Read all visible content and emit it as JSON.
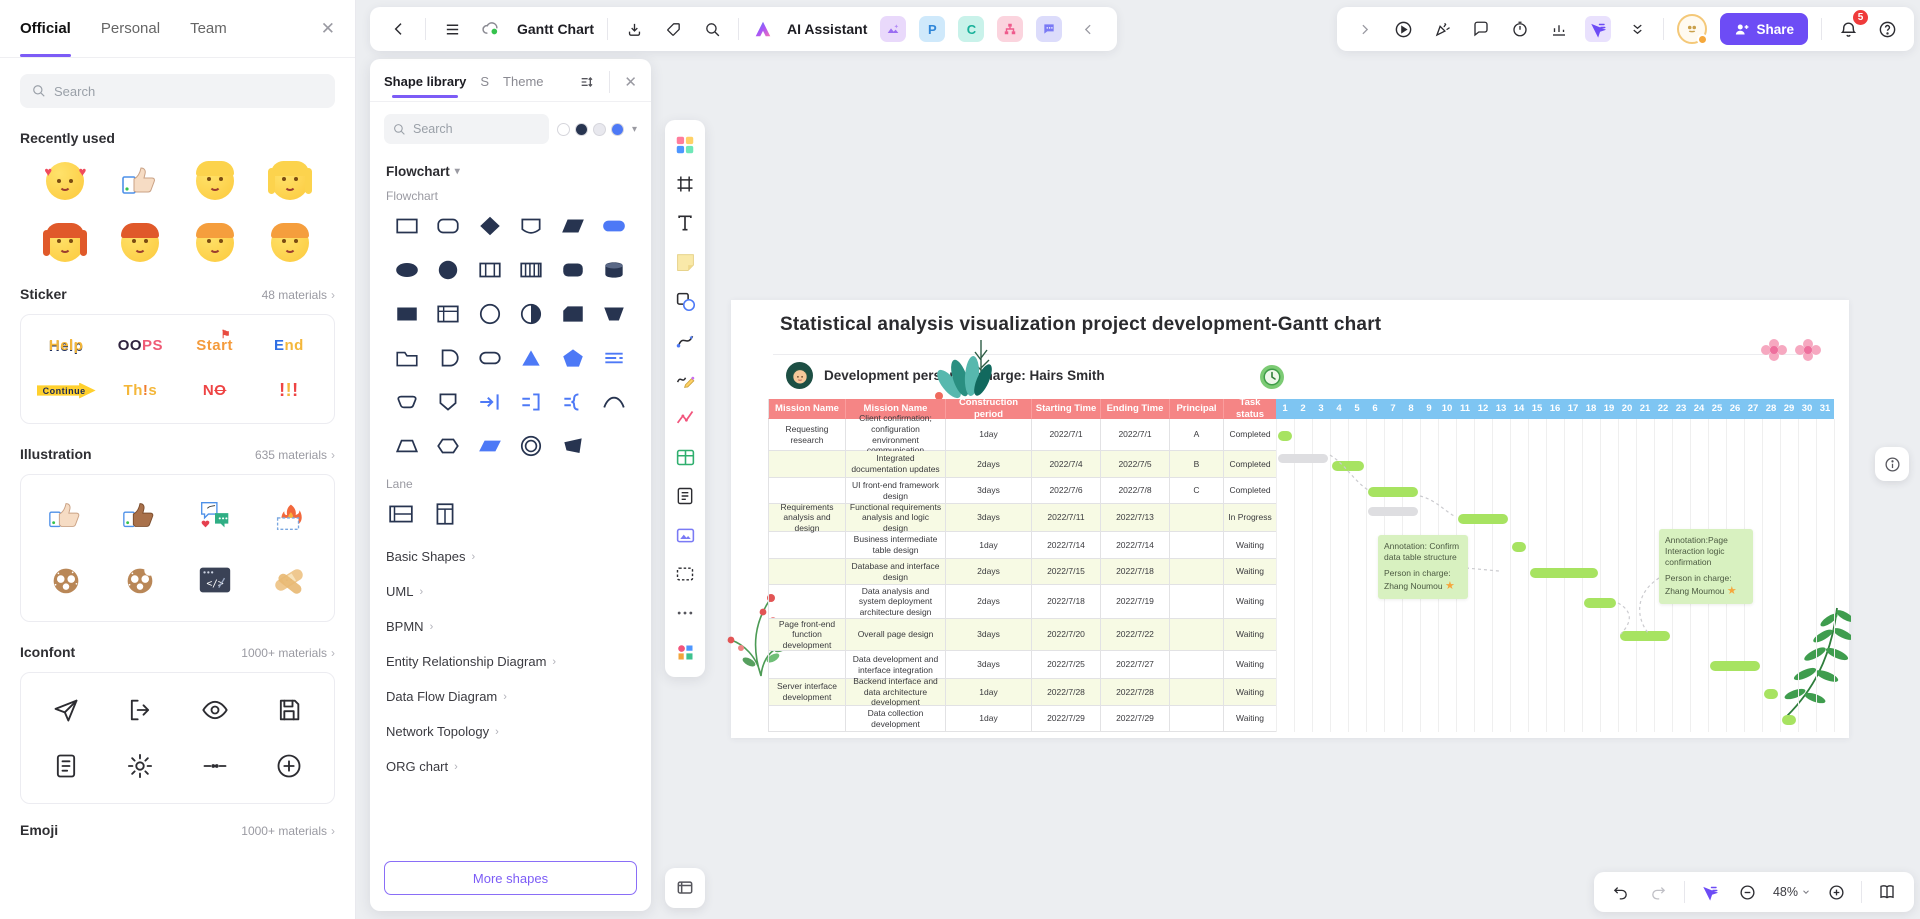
{
  "app": {
    "accent": "#6d4cf5"
  },
  "sidebar": {
    "tabs": [
      {
        "label": "Official",
        "active": true
      },
      {
        "label": "Personal",
        "active": false
      },
      {
        "label": "Team",
        "active": false
      }
    ],
    "search_placeholder": "Search",
    "recently_used": {
      "title": "Recently used",
      "items": [
        {
          "name": "smiling-face-with-hearts",
          "kind": "love"
        },
        {
          "name": "thumbs-up-sticker",
          "kind": "thumb"
        },
        {
          "name": "blond-boy",
          "kind": "face",
          "hair": "#fcd34d",
          "long": false
        },
        {
          "name": "blond-girl",
          "kind": "face",
          "hair": "#fcd34d",
          "long": true
        },
        {
          "name": "redhead-woman",
          "kind": "face",
          "hair": "#e0592a",
          "long": true
        },
        {
          "name": "redhead-person",
          "kind": "face",
          "hair": "#e0592a",
          "long": false
        },
        {
          "name": "curly-orange-person",
          "kind": "face",
          "hair": "#f59e3d",
          "long": false
        },
        {
          "name": "orange-boy",
          "kind": "face",
          "hair": "#f59e3d",
          "long": false
        }
      ]
    },
    "sticker": {
      "title": "Sticker",
      "count": "48 materials",
      "items": [
        {
          "text": "Help",
          "cls": "stk-help"
        },
        {
          "text": "OOPS",
          "cls": "stk-oops"
        },
        {
          "text": "Start",
          "cls": "stk-start"
        },
        {
          "text": "End",
          "cls": "stk-end"
        },
        {
          "text": "Continue",
          "cls": "stk-cont"
        },
        {
          "text": "This",
          "cls": "stk-this"
        },
        {
          "text": "NO",
          "cls": "stk-no"
        },
        {
          "text": "!!!",
          "cls": "stk-bang"
        }
      ]
    },
    "illustration": {
      "title": "Illustration",
      "count": "635 materials",
      "items": [
        "thumb-light",
        "thumb-dark",
        "chat-love",
        "burning-box",
        "pretzel",
        "pretzel-bitten",
        "code-window",
        "band-aid"
      ]
    },
    "iconfont": {
      "title": "Iconfont",
      "count": "1000+ materials",
      "items": [
        "send",
        "login",
        "eye",
        "save",
        "document",
        "settings",
        "divider",
        "add"
      ]
    },
    "emoji_section": {
      "title": "Emoji",
      "count": "1000+ materials"
    }
  },
  "shape_panel": {
    "tabs": [
      {
        "label": "Shape library",
        "active": true
      },
      {
        "label": "S",
        "active": false
      },
      {
        "label": "Theme",
        "active": false
      }
    ],
    "search_placeholder": "Search",
    "style_dots": [
      "#ffffff",
      "#273450",
      "#e8e8ee",
      "#4d79f6"
    ],
    "category_label": "Flowchart",
    "group_label": "Flowchart",
    "shapes": [
      {
        "n": "process-rectangle",
        "s": "o",
        "t": "rect"
      },
      {
        "n": "rounded-rectangle",
        "s": "o",
        "t": "roundrect"
      },
      {
        "n": "decision-diamond",
        "s": "f",
        "t": "diamond"
      },
      {
        "n": "display",
        "s": "o",
        "t": "display"
      },
      {
        "n": "parallelogram-filled",
        "s": "f",
        "t": "para"
      },
      {
        "n": "terminator-pill",
        "s": "b",
        "t": "pillf"
      },
      {
        "n": "ellipse-filled",
        "s": "f",
        "t": "ellipsef"
      },
      {
        "n": "circle-filled",
        "s": "f",
        "t": "circlef"
      },
      {
        "n": "predefined-process",
        "s": "o",
        "t": "split2"
      },
      {
        "n": "multi-process",
        "s": "o",
        "t": "split4"
      },
      {
        "n": "rounded-filled",
        "s": "f",
        "t": "roundrectf"
      },
      {
        "n": "drum-storage",
        "s": "f",
        "t": "cyl"
      },
      {
        "n": "rectangle-filled",
        "s": "f",
        "t": "rectf"
      },
      {
        "n": "internal-storage",
        "s": "o",
        "t": "winrect"
      },
      {
        "n": "connector-circle",
        "s": "o",
        "t": "circleo"
      },
      {
        "n": "or-junction",
        "s": "o",
        "t": "half"
      },
      {
        "n": "card-filled",
        "s": "f",
        "t": "card"
      },
      {
        "n": "manual-operation",
        "s": "f",
        "t": "trapdown"
      },
      {
        "n": "folder-tab",
        "s": "o",
        "t": "folder"
      },
      {
        "n": "delay-d",
        "s": "o",
        "t": "dshape"
      },
      {
        "n": "stadium",
        "s": "o",
        "t": "stadium"
      },
      {
        "n": "merge-triangle",
        "s": "b",
        "t": "trib"
      },
      {
        "n": "pentagon-blue",
        "s": "b",
        "t": "pentb"
      },
      {
        "n": "multi-line",
        "s": "b",
        "t": "linesb"
      },
      {
        "n": "rounded-trapezoid",
        "s": "o",
        "t": "roundtrap"
      },
      {
        "n": "shield",
        "s": "o",
        "t": "shield"
      },
      {
        "n": "arrow-to-bar",
        "s": "b",
        "t": "arrowb"
      },
      {
        "n": "bracket",
        "s": "b",
        "t": "bracketb"
      },
      {
        "n": "brace",
        "s": "b",
        "t": "braceb"
      },
      {
        "n": "arc-curve",
        "s": "o",
        "t": "arc"
      },
      {
        "n": "trapezoid",
        "s": "o",
        "t": "trap"
      },
      {
        "n": "hexagon",
        "s": "o",
        "t": "hex"
      },
      {
        "n": "parallelogram-blue",
        "s": "b",
        "t": "parab"
      },
      {
        "n": "double-circle",
        "s": "o",
        "t": "dcircle"
      },
      {
        "n": "skewed-quad",
        "s": "f",
        "t": "quadf"
      }
    ],
    "lane_label": "Lane",
    "lanes": [
      "horizontal-pool",
      "vertical-pool"
    ],
    "sections": [
      "Basic Shapes",
      "UML",
      "BPMN",
      "Entity Relationship Diagram",
      "Data Flow Diagram",
      "Network Topology",
      "ORG chart"
    ],
    "more_button": "More shapes"
  },
  "toolbar_left": {
    "doc_title": "Gantt Chart",
    "ai_label": "AI Assistant",
    "icons": [
      "back",
      "menu",
      "cloud-sync",
      "download",
      "tag",
      "search"
    ],
    "app_tiles": [
      "image-ai",
      "presentation-p",
      "mindmap-c",
      "org-chart",
      "chat-note"
    ]
  },
  "toolbar_right": {
    "icons": [
      "expand",
      "play-demo",
      "celebrate",
      "comment",
      "timer",
      "poll",
      "laser-pointer",
      "collapse-double"
    ],
    "share_label": "Share",
    "notification_count": "5"
  },
  "tools_rail": [
    "templates",
    "frame",
    "text",
    "sticky-note",
    "shapes",
    "connector",
    "pen",
    "chart",
    "table",
    "document",
    "media-card",
    "section",
    "more",
    "plugins"
  ],
  "gantt": {
    "title": "Statistical analysis visualization project development-Gantt chart",
    "person": "Development person in charge: Hairs Smith",
    "columns": [
      "Mission Name",
      "Mission Name",
      "Construction period",
      "Starting Time",
      "Ending Time",
      "Principal",
      "Task status"
    ],
    "rows": [
      {
        "mission": "Requesting research",
        "task": "Client confirmation; configuration environment communication",
        "period": "1day",
        "start": "2022/7/1",
        "end": "2022/7/1",
        "principal": "A",
        "status": "Completed",
        "bar": [
          1,
          1
        ]
      },
      {
        "mission": "",
        "task": "Integrated documentation updates",
        "period": "2days",
        "start": "2022/7/4",
        "end": "2022/7/5",
        "principal": "B",
        "status": "Completed",
        "bar": [
          4,
          5
        ]
      },
      {
        "mission": "",
        "task": "UI front-end framework design",
        "period": "3days",
        "start": "2022/7/6",
        "end": "2022/7/8",
        "principal": "C",
        "status": "Completed",
        "bar": [
          6,
          8
        ]
      },
      {
        "mission": "Requirements analysis and design",
        "task": "Functional requirements analysis and logic design",
        "period": "3days",
        "start": "2022/7/11",
        "end": "2022/7/13",
        "principal": "",
        "status": "In Progress",
        "bar": [
          11,
          13
        ]
      },
      {
        "mission": "",
        "task": "Business intermediate table design",
        "period": "1day",
        "start": "2022/7/14",
        "end": "2022/7/14",
        "principal": "",
        "status": "Waiting",
        "bar": [
          14,
          14
        ]
      },
      {
        "mission": "",
        "task": "Database and interface design",
        "period": "2days",
        "start": "2022/7/15",
        "end": "2022/7/18",
        "principal": "",
        "status": "Waiting",
        "bar": [
          15,
          18
        ]
      },
      {
        "mission": "",
        "task": "Data analysis and system deployment architecture design",
        "period": "2days",
        "start": "2022/7/18",
        "end": "2022/7/19",
        "principal": "",
        "status": "Waiting",
        "bar": [
          18,
          19
        ]
      },
      {
        "mission": "Page front-end function development",
        "task": "Overall page design",
        "period": "3days",
        "start": "2022/7/20",
        "end": "2022/7/22",
        "principal": "",
        "status": "Waiting",
        "bar": [
          20,
          22
        ]
      },
      {
        "mission": "",
        "task": "Data development and interface integration",
        "period": "3days",
        "start": "2022/7/25",
        "end": "2022/7/27",
        "principal": "",
        "status": "Waiting",
        "bar": [
          25,
          27
        ]
      },
      {
        "mission": "Server interface development",
        "task": "Backend interface and data architecture development",
        "period": "1day",
        "start": "2022/7/28",
        "end": "2022/7/28",
        "principal": "",
        "status": "Waiting",
        "bar": [
          28,
          28
        ]
      },
      {
        "mission": "",
        "task": "Data collection development",
        "period": "1day",
        "start": "2022/7/29",
        "end": "2022/7/29",
        "principal": "",
        "status": "Waiting",
        "bar": [
          29,
          29
        ]
      }
    ],
    "timeline_days": 31,
    "gray_bars": [
      {
        "row": 2,
        "from": 1,
        "to": 3
      },
      {
        "row": 4,
        "from": 6,
        "to": 8
      },
      {
        "row": 5,
        "from": 7,
        "to": 9
      }
    ],
    "bar_color": "#a7e361",
    "notes": [
      {
        "line1": "Annotation: Confirm data table structure",
        "line2": "Person in charge:",
        "line3": "Zhang Noumou"
      },
      {
        "line1": "Annotation:Page Interaction logic confirmation",
        "line2": "Person in charge:",
        "line3": "Zhang Moumou"
      }
    ]
  },
  "zoombar": {
    "zoom": "48%"
  }
}
